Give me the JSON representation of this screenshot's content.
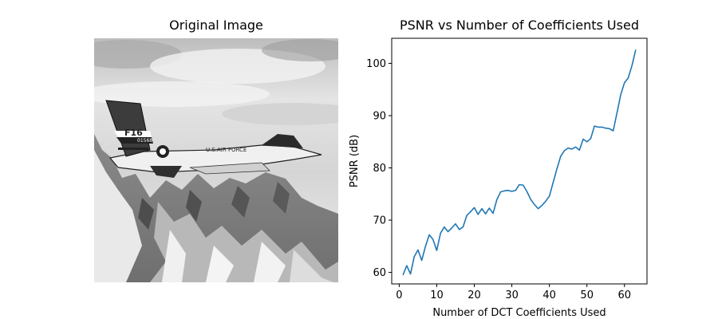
{
  "image_panel": {
    "title": "Original Image",
    "aircraft_markings": [
      "F16",
      "01568",
      "U.S.AIR FORCE"
    ]
  },
  "chart_data": {
    "type": "line",
    "title": "PSNR vs Number of Coefficients Used",
    "xlabel": "Number of DCT Coefficients Used",
    "ylabel": "PSNR (dB)",
    "xlim": [
      -2,
      66
    ],
    "ylim": [
      57.8,
      104.8
    ],
    "xticks": [
      0,
      10,
      20,
      30,
      40,
      50,
      60
    ],
    "yticks": [
      60,
      70,
      80,
      90,
      100
    ],
    "grid": false,
    "line_color": "#1f77b4",
    "series": [
      {
        "x": [
          1,
          2,
          3,
          4,
          5,
          6,
          7,
          8,
          9,
          10,
          11,
          12,
          13,
          14,
          15,
          16,
          17,
          18,
          19,
          20,
          21,
          22,
          23,
          24,
          25,
          26,
          27,
          28,
          29,
          30,
          31,
          32,
          33,
          34,
          35,
          36,
          37,
          38,
          39,
          40,
          41,
          42,
          43,
          44,
          45,
          46,
          47,
          48,
          49,
          50,
          51,
          52,
          53,
          54,
          55,
          56,
          57,
          58,
          59,
          60,
          61,
          62,
          63
        ],
        "values": [
          59.5,
          61.3,
          59.7,
          63.0,
          64.3,
          62.3,
          65.0,
          67.2,
          66.3,
          64.2,
          67.5,
          68.7,
          67.8,
          68.5,
          69.3,
          68.2,
          68.7,
          70.9,
          71.6,
          72.4,
          71.1,
          72.2,
          71.2,
          72.3,
          71.3,
          73.9,
          75.4,
          75.6,
          75.7,
          75.5,
          75.7,
          76.8,
          76.7,
          75.5,
          74.0,
          73.0,
          72.2,
          72.8,
          73.6,
          74.6,
          77.2,
          79.8,
          82.2,
          83.3,
          83.8,
          83.6,
          84.0,
          83.4,
          85.5,
          85.0,
          85.6,
          88.0,
          87.8,
          87.8,
          87.6,
          87.5,
          87.1,
          90.5,
          94.0,
          96.3,
          97.2,
          99.6,
          102.6
        ]
      }
    ]
  }
}
